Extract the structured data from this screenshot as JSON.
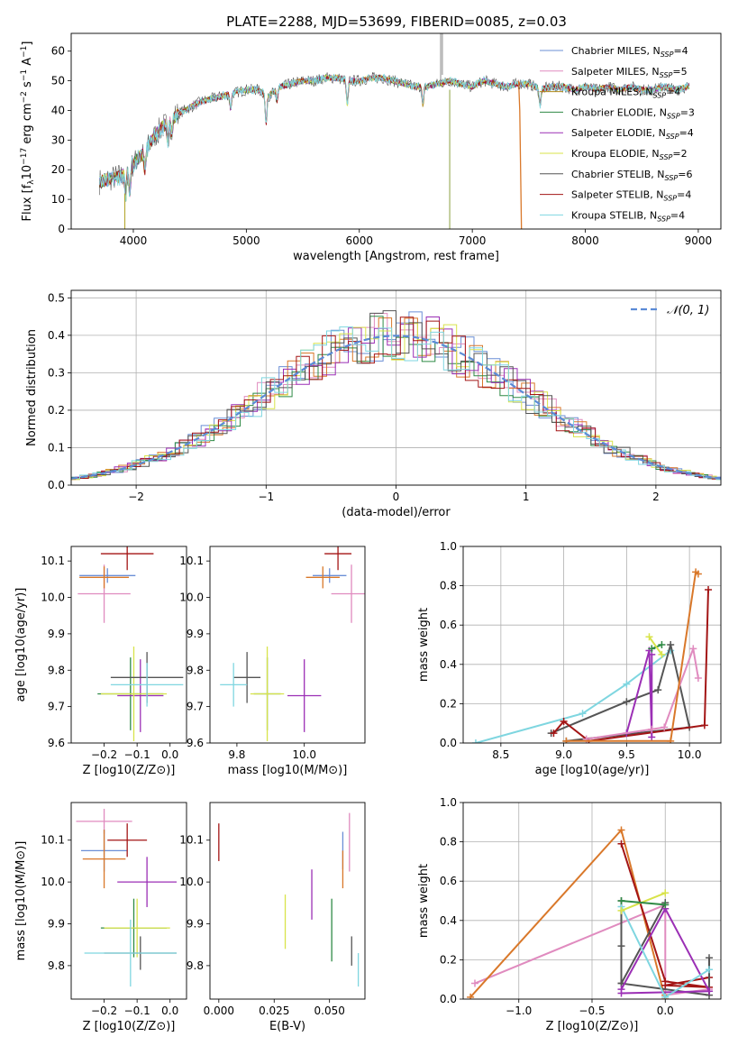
{
  "figure_title": "PLATE=2288, MJD=53699, FIBERID=0085, z=0.03",
  "colors": {
    "blue": "#6b8fd6",
    "pink": "#e08bbf",
    "orange": "#d9782a",
    "green": "#2f8a45",
    "purple": "#9b2fb5",
    "yellow": "#d8e34a",
    "darkgray": "#555555",
    "red": "#a31515",
    "cyan": "#7fd6e0",
    "gaussian": "#5b8bd6"
  },
  "chart_data": [
    {
      "type": "line",
      "panel": "spectrum",
      "title": "PLATE=2288, MJD=53699, FIBERID=0085, z=0.03",
      "xlabel": "wavelength [Angstrom, rest frame]",
      "ylabel": "Flux [f_λ 10^-17 erg cm^-2 s^-1 A^-1]",
      "xlim": [
        3450,
        9200
      ],
      "ylim": [
        0,
        66
      ],
      "xticks": [
        4000,
        5000,
        6000,
        7000,
        8000,
        9000
      ],
      "yticks": [
        0,
        10,
        20,
        30,
        40,
        50,
        60
      ],
      "legend_position": "upper-right",
      "legend": [
        {
          "label": "Chabrier MILES, N_SSP=4",
          "color": "#6b8fd6"
        },
        {
          "label": "Salpeter MILES, N_SSP=5",
          "color": "#e08bbf"
        },
        {
          "label": "Kroupa MILES, N_SSP=4",
          "color": "#b08a1a"
        },
        {
          "label": "Chabrier ELODIE, N_SSP=3",
          "color": "#2f8a45"
        },
        {
          "label": "Salpeter ELODIE, N_SSP=4",
          "color": "#9b2fb5"
        },
        {
          "label": "Kroupa ELODIE, N_SSP=2",
          "color": "#d8e34a"
        },
        {
          "label": "Chabrier STELIB, N_SSP=6",
          "color": "#555555"
        },
        {
          "label": "Salpeter STELIB, N_SSP=4",
          "color": "#a31515"
        },
        {
          "label": "Kroupa STELIB, N_SSP=4",
          "color": "#7fd6e0"
        }
      ],
      "continuum_x": [
        3700,
        3800,
        3900,
        4000,
        4100,
        4200,
        4300,
        4400,
        4500,
        4600,
        4700,
        4800,
        4900,
        5000,
        5100,
        5200,
        5300,
        5400,
        5500,
        5600,
        5700,
        5800,
        5900,
        6000,
        6100,
        6200,
        6300,
        6400,
        6500,
        6600,
        6700,
        6800,
        6900,
        7000,
        7100,
        7200,
        7300,
        7400,
        7500,
        7600,
        7700,
        7800,
        7900,
        8000,
        8100,
        8200,
        8300,
        8400,
        8500,
        8600,
        8700,
        8800,
        8900
      ],
      "continuum_y": [
        16,
        17,
        18,
        22,
        26,
        32,
        36,
        39,
        41,
        43,
        44,
        45,
        46,
        47,
        47,
        45,
        48,
        49,
        50,
        50,
        51,
        51,
        50,
        50,
        51,
        51,
        50,
        49,
        48,
        48,
        49,
        50,
        49,
        48,
        50,
        49,
        48,
        49,
        49,
        47,
        48,
        48,
        47,
        48,
        47,
        48,
        47,
        48,
        47,
        47,
        48,
        47,
        48
      ]
    },
    {
      "type": "line",
      "panel": "residual-histogram",
      "xlabel": "(data-model)/error",
      "ylabel": "Normed distribution",
      "xlim": [
        -2.5,
        2.5
      ],
      "ylim": [
        0,
        0.52
      ],
      "xticks": [
        -2,
        -1,
        0,
        1,
        2
      ],
      "yticks": [
        0.0,
        0.1,
        0.2,
        0.3,
        0.4,
        0.5
      ],
      "grid": true,
      "legend": [
        {
          "label": "𝒩(0, 1)",
          "style": "dashed",
          "color": "#5b8bd6"
        }
      ],
      "legend_position": "upper-right"
    },
    {
      "type": "scatter",
      "panel": "age-vs-Z",
      "xlabel": "Z [log10(Z/Z⊙)]",
      "ylabel": "age  [log10(age/yr)]",
      "xlim": [
        -0.3,
        0.05
      ],
      "ylim": [
        9.6,
        10.14
      ],
      "xticks": [
        -0.2,
        -0.1,
        0.0
      ],
      "yticks": [
        9.6,
        9.7,
        9.8,
        9.9,
        10.0,
        10.1
      ],
      "points": [
        {
          "color": "#6b8fd6",
          "x": -0.19,
          "y": 10.06,
          "xerr": 0.085,
          "yerr": 0.02
        },
        {
          "color": "#e08bbf",
          "x": -0.2,
          "y": 10.01,
          "xerr": 0.08,
          "yerr": 0.08
        },
        {
          "color": "#d9782a",
          "x": -0.2,
          "y": 10.055,
          "xerr": 0.075,
          "yerr": 0.03
        },
        {
          "color": "#2f8a45",
          "x": -0.12,
          "y": 9.735,
          "xerr": 0.1,
          "yerr": 0.1
        },
        {
          "color": "#9b2fb5",
          "x": -0.09,
          "y": 9.73,
          "xerr": 0.07,
          "yerr": 0.1
        },
        {
          "color": "#d8e34a",
          "x": -0.11,
          "y": 9.735,
          "xerr": 0.1,
          "yerr": 0.13
        },
        {
          "color": "#555555",
          "x": -0.07,
          "y": 9.78,
          "xerr": 0.11,
          "yerr": 0.07
        },
        {
          "color": "#a31515",
          "x": -0.13,
          "y": 10.12,
          "xerr": 0.08,
          "yerr": 0.045
        },
        {
          "color": "#7fd6e0",
          "x": -0.07,
          "y": 9.76,
          "xerr": 0.11,
          "yerr": 0.06
        }
      ]
    },
    {
      "type": "scatter",
      "panel": "age-vs-mass",
      "xlabel": "mass [log10(M/M⊙)]",
      "xlim": [
        9.72,
        10.18
      ],
      "ylim": [
        9.6,
        10.14
      ],
      "xticks": [
        9.8,
        10.0
      ],
      "yticks": [
        9.6,
        9.7,
        9.8,
        9.9,
        10.0,
        10.1
      ],
      "points": [
        {
          "color": "#6b8fd6",
          "x": 10.075,
          "y": 10.06,
          "xerr": 0.05,
          "yerr": 0.02
        },
        {
          "color": "#e08bbf",
          "x": 10.14,
          "y": 10.01,
          "xerr": 0.06,
          "yerr": 0.08
        },
        {
          "color": "#d9782a",
          "x": 10.055,
          "y": 10.055,
          "xerr": 0.05,
          "yerr": 0.03
        },
        {
          "color": "#2f8a45",
          "x": 9.89,
          "y": 9.735,
          "xerr": 0.04,
          "yerr": 0.1
        },
        {
          "color": "#9b2fb5",
          "x": 10.0,
          "y": 9.73,
          "xerr": 0.05,
          "yerr": 0.1
        },
        {
          "color": "#d8e34a",
          "x": 9.89,
          "y": 9.735,
          "xerr": 0.05,
          "yerr": 0.13
        },
        {
          "color": "#555555",
          "x": 9.83,
          "y": 9.78,
          "xerr": 0.04,
          "yerr": 0.07
        },
        {
          "color": "#a31515",
          "x": 10.1,
          "y": 10.12,
          "xerr": 0.04,
          "yerr": 0.045
        },
        {
          "color": "#7fd6e0",
          "x": 9.79,
          "y": 9.76,
          "xerr": 0.04,
          "yerr": 0.06
        }
      ]
    },
    {
      "type": "line",
      "panel": "mass-weight-vs-age",
      "xlabel": "age  [log10(age/yr)]",
      "ylabel": "mass weight",
      "xlim": [
        8.2,
        10.25
      ],
      "ylim": [
        0,
        1.0
      ],
      "xticks": [
        8.5,
        9.0,
        9.5,
        10.0
      ],
      "yticks": [
        0.0,
        0.2,
        0.4,
        0.6,
        0.8,
        1.0
      ],
      "grid": true,
      "series": [
        {
          "color": "#7fd6e0",
          "x": [
            8.3,
            9.15,
            9.5,
            9.85
          ],
          "y": [
            0.0,
            0.15,
            0.3,
            0.47
          ]
        },
        {
          "color": "#555555",
          "x": [
            8.9,
            9.5,
            9.75,
            9.85,
            10.0,
            9.02
          ],
          "y": [
            0.05,
            0.21,
            0.27,
            0.5,
            0.08,
            0.01
          ]
        },
        {
          "color": "#a31515",
          "x": [
            8.92,
            9.0,
            9.2,
            10.12,
            10.15
          ],
          "y": [
            0.05,
            0.11,
            0.01,
            0.09,
            0.78
          ]
        },
        {
          "color": "#9b2fb5",
          "x": [
            9.5,
            9.68,
            9.7,
            9.7
          ],
          "y": [
            0.05,
            0.47,
            0.03,
            0.45
          ]
        },
        {
          "color": "#e08bbf",
          "x": [
            9.18,
            9.7,
            9.8,
            10.03,
            10.07
          ],
          "y": [
            0.02,
            0.07,
            0.08,
            0.48,
            0.33
          ]
        },
        {
          "color": "#d9782a",
          "x": [
            9.02,
            9.85,
            10.05,
            10.07
          ],
          "y": [
            0.01,
            0.01,
            0.87,
            0.86
          ]
        },
        {
          "color": "#2f8a45",
          "x": [
            9.7,
            9.78
          ],
          "y": [
            0.48,
            0.5
          ]
        },
        {
          "color": "#d8e34a",
          "x": [
            9.68,
            9.78
          ],
          "y": [
            0.54,
            0.45
          ]
        }
      ]
    },
    {
      "type": "scatter",
      "panel": "mass-vs-Z",
      "xlabel": "Z [log10(Z/Z⊙)]",
      "ylabel": "mass [log10(M/M⊙)]",
      "xlim": [
        -0.3,
        0.05
      ],
      "ylim": [
        9.72,
        10.19
      ],
      "xticks": [
        -0.2,
        -0.1,
        0.0
      ],
      "yticks": [
        9.8,
        9.9,
        10.0,
        10.1
      ],
      "points": [
        {
          "color": "#e08bbf",
          "x": -0.2,
          "y": 10.145,
          "xerr": 0.085,
          "yerr": 0.03
        },
        {
          "color": "#6b8fd6",
          "x": -0.2,
          "y": 10.075,
          "xerr": 0.07,
          "yerr": 0.05
        },
        {
          "color": "#a31515",
          "x": -0.13,
          "y": 10.1,
          "xerr": 0.06,
          "yerr": 0.04
        },
        {
          "color": "#d9782a",
          "x": -0.2,
          "y": 10.055,
          "xerr": 0.065,
          "yerr": 0.07
        },
        {
          "color": "#9b2fb5",
          "x": -0.07,
          "y": 10.0,
          "xerr": 0.09,
          "yerr": 0.06
        },
        {
          "color": "#2f8a45",
          "x": -0.11,
          "y": 9.89,
          "xerr": 0.1,
          "yerr": 0.07
        },
        {
          "color": "#d8e34a",
          "x": -0.1,
          "y": 9.89,
          "xerr": 0.1,
          "yerr": 0.07
        },
        {
          "color": "#555555",
          "x": -0.09,
          "y": 9.83,
          "xerr": 0.11,
          "yerr": 0.04
        },
        {
          "color": "#7fd6e0",
          "x": -0.12,
          "y": 9.83,
          "xerr": 0.14,
          "yerr": 0.08
        }
      ]
    },
    {
      "type": "scatter",
      "panel": "mass-vs-EBV",
      "xlabel": "E(B-V)",
      "xlim": [
        -0.004,
        0.066
      ],
      "ylim": [
        9.72,
        10.19
      ],
      "xticks": [
        0.0,
        0.025,
        0.05
      ],
      "yticks": [
        9.8,
        9.9,
        10.0,
        10.1
      ],
      "points": [
        {
          "color": "#a31515",
          "x": 0.0,
          "y": 10.095,
          "yerr": 0.045
        },
        {
          "color": "#9b2fb5",
          "x": 0.042,
          "y": 9.97,
          "yerr": 0.06
        },
        {
          "color": "#d8e34a",
          "x": 0.03,
          "y": 9.905,
          "yerr": 0.065
        },
        {
          "color": "#2f8a45",
          "x": 0.051,
          "y": 9.885,
          "yerr": 0.075
        },
        {
          "color": "#6b8fd6",
          "x": 0.056,
          "y": 10.075,
          "yerr": 0.045
        },
        {
          "color": "#d9782a",
          "x": 0.056,
          "y": 10.03,
          "yerr": 0.045
        },
        {
          "color": "#e08bbf",
          "x": 0.059,
          "y": 10.095,
          "yerr": 0.07
        },
        {
          "color": "#555555",
          "x": 0.06,
          "y": 9.835,
          "yerr": 0.035
        },
        {
          "color": "#7fd6e0",
          "x": 0.063,
          "y": 9.79,
          "yerr": 0.04
        }
      ]
    },
    {
      "type": "line",
      "panel": "mass-weight-vs-Z",
      "xlabel": "Z [log10(Z/Z⊙)]",
      "ylabel": "mass weight",
      "xlim": [
        -1.38,
        0.38
      ],
      "ylim": [
        0,
        1.0
      ],
      "xticks": [
        -1.0,
        -0.5,
        0.0
      ],
      "yticks": [
        0.0,
        0.2,
        0.4,
        0.6,
        0.8,
        1.0
      ],
      "grid": true,
      "series": [
        {
          "color": "#e08bbf",
          "x": [
            -1.3,
            0.0,
            0.0,
            0.3
          ],
          "y": [
            0.08,
            0.48,
            0.02,
            0.05
          ]
        },
        {
          "color": "#d9782a",
          "x": [
            -1.33,
            -0.3,
            0.0,
            0.0
          ],
          "y": [
            0.01,
            0.86,
            0.0,
            0.02
          ]
        },
        {
          "color": "#a31515",
          "x": [
            -0.3,
            0.0,
            0.3,
            0.0,
            0.3
          ],
          "y": [
            0.79,
            0.09,
            0.06,
            0.07,
            0.11
          ]
        },
        {
          "color": "#555555",
          "x": [
            -0.3,
            -0.3,
            -0.3,
            0.0,
            -0.3,
            0.3,
            0.3
          ],
          "y": [
            0.5,
            0.27,
            0.08,
            0.49,
            0.08,
            0.02,
            0.21
          ]
        },
        {
          "color": "#9b2fb5",
          "x": [
            -0.3,
            0.0,
            0.3,
            -0.3
          ],
          "y": [
            0.05,
            0.46,
            0.04,
            0.03
          ]
        },
        {
          "color": "#7fd6e0",
          "x": [
            -0.3,
            0.0,
            0.3
          ],
          "y": [
            0.47,
            0.01,
            0.15
          ]
        },
        {
          "color": "#d8e34a",
          "x": [
            -0.3,
            0.0
          ],
          "y": [
            0.45,
            0.54
          ]
        },
        {
          "color": "#2f8a45",
          "x": [
            -0.3,
            0.0
          ],
          "y": [
            0.5,
            0.48
          ]
        }
      ]
    }
  ],
  "axis_labels": {
    "spec_y": "Flux [f",
    "spec_y_sub": "λ",
    "spec_y_rest": "10",
    "spec_y_sup1": "−17",
    "spec_y_rest2": " erg cm",
    "spec_y_sup2": "−2",
    "spec_y_rest3": " s",
    "spec_y_sup3": "−1",
    "spec_y_rest4": " A",
    "spec_y_sup4": "−1",
    "spec_y_close": "]"
  }
}
